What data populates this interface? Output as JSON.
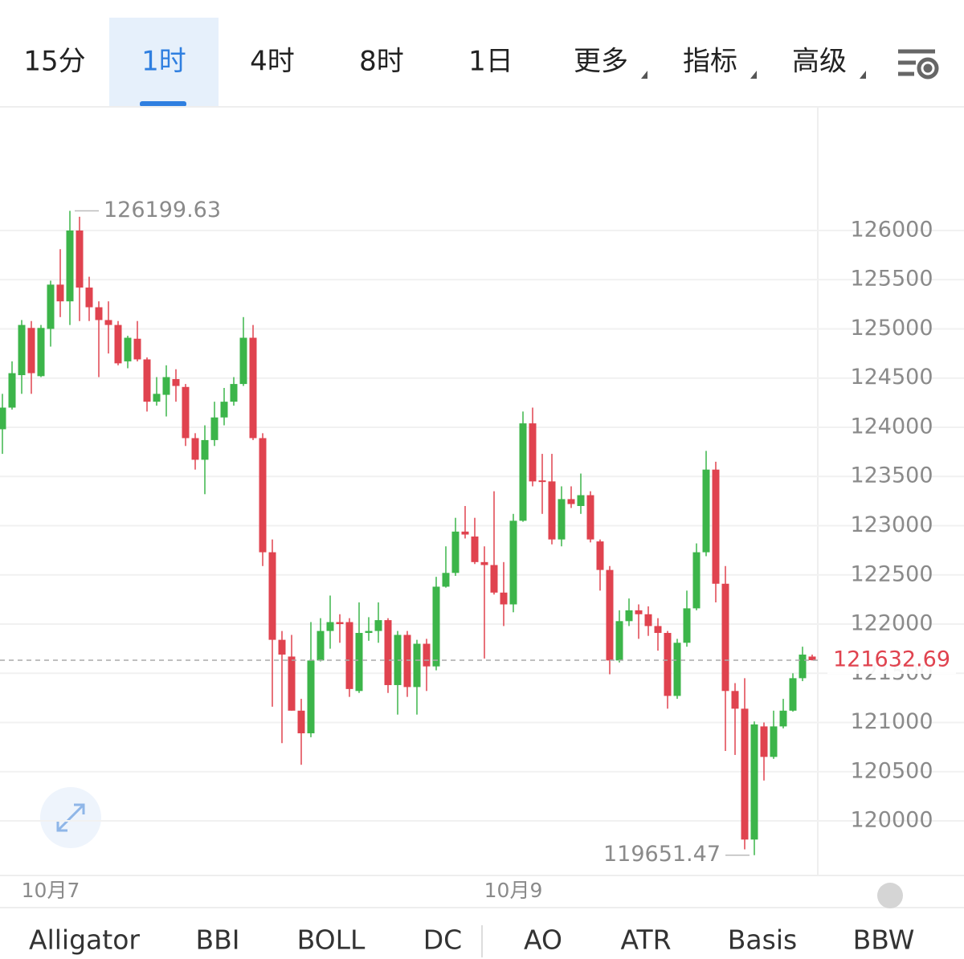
{
  "tabs": [
    "15分",
    "1时",
    "4时",
    "8时",
    "1日",
    "更多",
    "指标",
    "高级"
  ],
  "indicators": [
    "Alligator",
    "BBI",
    "BOLL",
    "DC",
    "AO",
    "ATR",
    "Basis",
    "BBW"
  ],
  "chart_data": {
    "type": "candlestick",
    "categories": [
      null,
      null,
      null,
      null,
      null,
      "10月7",
      null,
      null,
      null,
      null,
      null,
      null,
      null,
      null,
      null,
      null,
      null,
      null,
      null,
      null,
      null,
      null,
      null,
      null,
      null,
      null,
      null,
      null,
      null,
      null,
      null,
      null,
      null,
      null,
      null,
      null,
      null,
      null,
      null,
      null,
      null,
      null,
      null,
      null,
      null,
      null,
      null,
      null,
      null,
      null,
      null,
      null,
      null,
      "10月9",
      null,
      null,
      null,
      null,
      null,
      null,
      null,
      null,
      null,
      null,
      null,
      null,
      null,
      null,
      null,
      null,
      null,
      null,
      null,
      null,
      null,
      null,
      null,
      null,
      null,
      null,
      null,
      null,
      null,
      null,
      null
    ],
    "open": [
      123980,
      124200,
      124530,
      125010,
      124520,
      125000,
      125450,
      125280,
      126000,
      125420,
      125220,
      125090,
      125040,
      124670,
      124900,
      124690,
      124260,
      124330,
      124490,
      124410,
      123890,
      123670,
      123870,
      124100,
      124260,
      124440,
      124910,
      123890,
      122730,
      121840,
      121670,
      121120,
      120890,
      121630,
      121930,
      122020,
      122020,
      121320,
      121910,
      121930,
      122040,
      121380,
      121890,
      121360,
      121800,
      121570,
      122380,
      122520,
      122940,
      122890,
      122630,
      122600,
      122320,
      122200,
      123050,
      124040,
      123460,
      123450,
      122860,
      123270,
      123200,
      123310,
      122840,
      122550,
      121630,
      122030,
      122140,
      122100,
      121980,
      121910,
      121270,
      121810,
      122160,
      122730,
      123570,
      122410,
      121320,
      121140,
      119810,
      120960,
      120650,
      120960,
      121120,
      121450,
      121670
    ],
    "high": [
      124340,
      124670,
      125090,
      125080,
      125040,
      125490,
      125810,
      126199.63,
      126140,
      125530,
      125280,
      125280,
      125080,
      124930,
      125080,
      124710,
      124510,
      124630,
      124590,
      124440,
      123940,
      124020,
      124260,
      124400,
      124510,
      125120,
      125040,
      123940,
      122860,
      121930,
      121890,
      121240,
      122020,
      122060,
      122290,
      122100,
      122060,
      122220,
      122070,
      122220,
      122060,
      121930,
      121930,
      121840,
      121850,
      122480,
      122790,
      123080,
      123200,
      123080,
      122790,
      123350,
      122630,
      123120,
      124160,
      124200,
      123730,
      123730,
      123400,
      123400,
      123530,
      123350,
      122860,
      122590,
      122140,
      122260,
      122200,
      122180,
      122060,
      121930,
      121850,
      122340,
      122820,
      123760,
      123650,
      122590,
      121400,
      121450,
      121010,
      121000,
      121120,
      121240,
      121500,
      121770,
      121690
    ],
    "low": [
      123730,
      124180,
      124340,
      124340,
      124510,
      124820,
      125120,
      125040,
      125080,
      125080,
      124510,
      124750,
      124630,
      124600,
      124670,
      124160,
      124220,
      124110,
      124260,
      123810,
      123570,
      123320,
      123810,
      124020,
      124220,
      124420,
      123870,
      122590,
      121160,
      120790,
      121120,
      120570,
      120850,
      121620,
      121750,
      121810,
      121260,
      121300,
      121830,
      121810,
      121300,
      121080,
      121260,
      121080,
      121320,
      121530,
      122370,
      122490,
      122870,
      122610,
      121650,
      122300,
      121980,
      122120,
      123040,
      123400,
      123120,
      122810,
      122790,
      123180,
      123120,
      122830,
      122340,
      121490,
      121610,
      121980,
      121850,
      121880,
      121730,
      121140,
      121240,
      121770,
      122140,
      122690,
      122220,
      120710,
      120670,
      119710,
      119651.47,
      120410,
      120630,
      120940,
      121110,
      121420,
      121630
    ],
    "close": [
      124200,
      124550,
      125040,
      124550,
      125010,
      125450,
      125280,
      126000,
      125420,
      125220,
      125090,
      125040,
      124650,
      124910,
      124690,
      124260,
      124340,
      124510,
      124420,
      123890,
      123670,
      123870,
      124100,
      124260,
      124440,
      124910,
      123890,
      122730,
      121840,
      121690,
      121120,
      120890,
      121630,
      121930,
      122020,
      122000,
      121340,
      121910,
      121930,
      122040,
      121380,
      121890,
      121360,
      121800,
      121570,
      122380,
      122520,
      122940,
      122910,
      122630,
      122600,
      122320,
      122200,
      123050,
      124040,
      123450,
      123450,
      122860,
      123270,
      123220,
      123310,
      122860,
      122550,
      121630,
      122030,
      122140,
      122100,
      121980,
      121910,
      121270,
      121810,
      122160,
      122730,
      123570,
      122410,
      121320,
      121140,
      119810,
      120980,
      120650,
      120960,
      121120,
      121450,
      121690,
      121632.69
    ],
    "up_color": "#3cb54a",
    "down_color": "#e0434f",
    "ylim": [
      119445,
      127257
    ],
    "yticks": [
      120000,
      120500,
      121000,
      121500,
      122000,
      122500,
      123000,
      123500,
      124000,
      124500,
      125000,
      125500,
      126000
    ],
    "grid": true
  }
}
